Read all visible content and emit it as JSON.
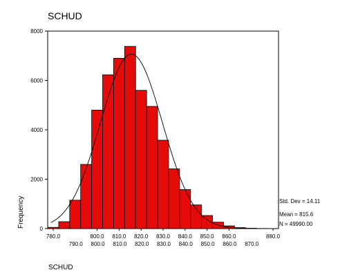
{
  "chart_data": {
    "type": "bar",
    "title": "SCHUD",
    "xlabel": "SCHUD",
    "ylabel": "Frequency",
    "xlim": [
      777.5,
      882.5
    ],
    "ylim": [
      0,
      8000
    ],
    "bin_width": 5,
    "x_ticks_upper": [
      "780.0",
      "800.0",
      "810.0",
      "820.0",
      "830.0",
      "840.0",
      "850.0",
      "860.0",
      "880.0"
    ],
    "x_ticks_lower": [
      "790.0",
      "800.0",
      "810.0",
      "820.0",
      "830.0",
      "840.0",
      "850.0",
      "860.0",
      "870.0"
    ],
    "y_ticks": [
      "0",
      "2000",
      "4000",
      "6000",
      "8000"
    ],
    "bins": [
      {
        "x": 780.0,
        "value": 50
      },
      {
        "x": 785.0,
        "value": 280
      },
      {
        "x": 790.0,
        "value": 1150
      },
      {
        "x": 795.0,
        "value": 2600
      },
      {
        "x": 800.0,
        "value": 4800
      },
      {
        "x": 805.0,
        "value": 6230
      },
      {
        "x": 810.0,
        "value": 6900
      },
      {
        "x": 815.0,
        "value": 7380
      },
      {
        "x": 820.0,
        "value": 5600
      },
      {
        "x": 825.0,
        "value": 4950
      },
      {
        "x": 830.0,
        "value": 3580
      },
      {
        "x": 835.0,
        "value": 2420
      },
      {
        "x": 840.0,
        "value": 1580
      },
      {
        "x": 845.0,
        "value": 960
      },
      {
        "x": 850.0,
        "value": 530
      },
      {
        "x": 855.0,
        "value": 260
      },
      {
        "x": 860.0,
        "value": 110
      },
      {
        "x": 865.0,
        "value": 40
      },
      {
        "x": 870.0,
        "value": 15
      },
      {
        "x": 875.0,
        "value": 5
      },
      {
        "x": 880.0,
        "value": 2
      }
    ],
    "normal_curve": {
      "mean": 815.6,
      "std_dev": 14.11,
      "n": 49990.0
    },
    "bar_color": "#e50b0b",
    "grid": false,
    "stats": {
      "std_dev": "Std. Dev = 14.11",
      "mean": "Mean = 815.6",
      "n": "N = 49990.00"
    }
  }
}
